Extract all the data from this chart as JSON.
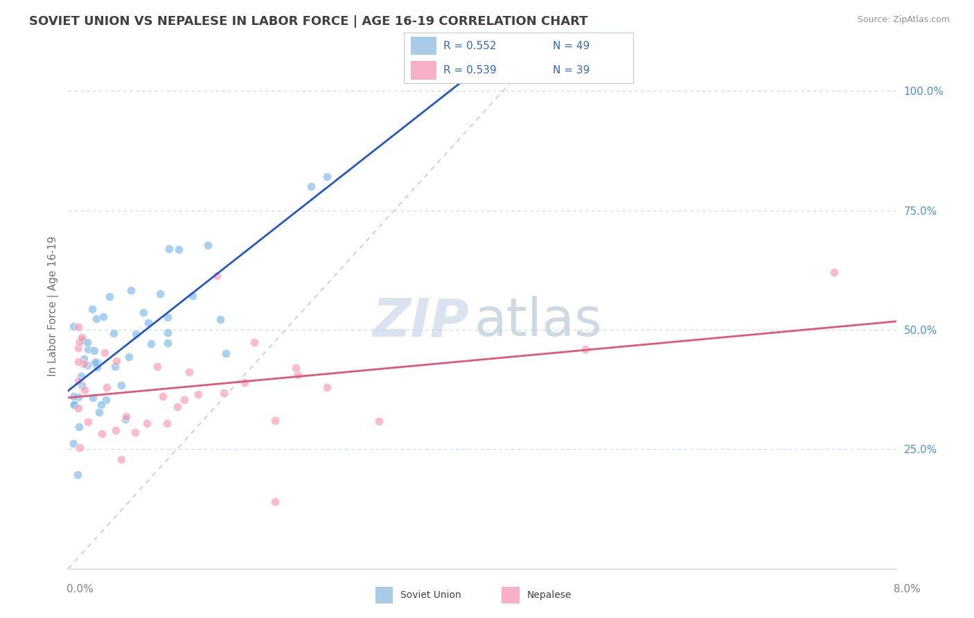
{
  "title": "SOVIET UNION VS NEPALESE IN LABOR FORCE | AGE 16-19 CORRELATION CHART",
  "source": "Source: ZipAtlas.com",
  "ylabel": "In Labor Force | Age 16-19",
  "xlim": [
    0.0,
    0.08
  ],
  "ylim": [
    0.0,
    1.1
  ],
  "yticks": [
    0.25,
    0.5,
    0.75,
    1.0
  ],
  "ytick_labels": [
    "25.0%",
    "50.0%",
    "75.0%",
    "100.0%"
  ],
  "soviet_color": "#7ab8e8",
  "nepalese_color": "#f898b0",
  "soviet_line_color": "#2255cc",
  "nepalese_line_color": "#e05878",
  "ref_line_color": "#b0bcd8",
  "grid_color": "#c8d4e8",
  "background_color": "#ffffff",
  "title_color": "#404040",
  "title_fontsize": 13,
  "legend_blue_color": "#a8cce8",
  "legend_pink_color": "#f8b0c8",
  "legend_text_color": "#3366cc",
  "watermark_zip_color": "#cdd8e8",
  "watermark_atlas_color": "#c0ccd8"
}
